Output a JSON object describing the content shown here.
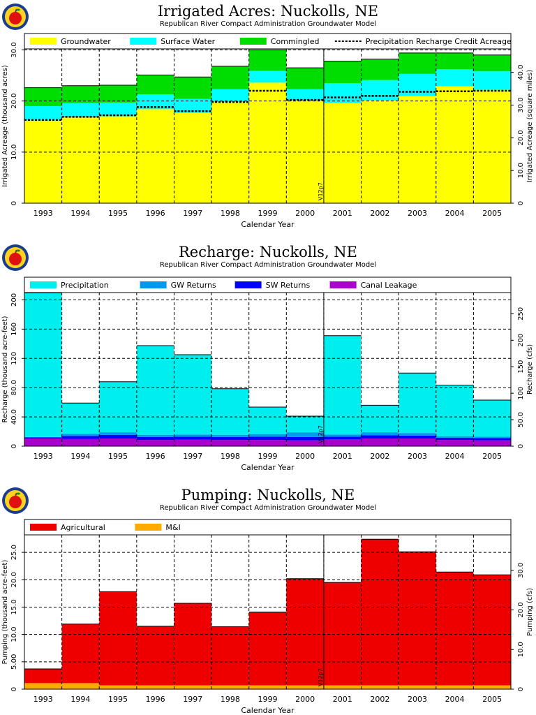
{
  "page": {
    "model": "Republican River Compact Administration Groundwater Model"
  },
  "chart_data": [
    {
      "type": "bar",
      "stacked": true,
      "title": "Irrigated Acres: Nuckolls, NE",
      "subtitle": "Republican River Compact Administration Groundwater Model",
      "xlabel": "Calendar Year",
      "ylabel": "Irrigated Acreage (thousand acres)",
      "ylabel_right": "Irrigated Acreage (square miles)",
      "ylim": [
        0,
        30.2
      ],
      "yticks": [
        0,
        10.0,
        20.0,
        30.0
      ],
      "yticks_right_labels": [
        "0",
        "10.0",
        "20.0",
        "30.0",
        "40.0"
      ],
      "yticks_right_values": [
        0,
        6.4,
        12.8,
        19.2,
        25.6
      ],
      "grid": true,
      "legend_position": "top",
      "categories": [
        "1993",
        "1994",
        "1995",
        "1996",
        "1997",
        "1998",
        "1999",
        "2000",
        "2001",
        "2002",
        "2003",
        "2004",
        "2005"
      ],
      "series": [
        {
          "name": "Groundwater",
          "color": "#ffff00",
          "values": [
            16.2,
            16.8,
            17.0,
            18.4,
            17.7,
            19.8,
            23.6,
            20.1,
            19.6,
            20.1,
            21.0,
            22.9,
            22.2
          ]
        },
        {
          "name": "Surface Water",
          "color": "#00ffff",
          "values": [
            2.8,
            2.8,
            2.7,
            2.9,
            2.7,
            2.5,
            2.3,
            2.2,
            3.9,
            4.0,
            4.3,
            3.3,
            3.6
          ]
        },
        {
          "name": "Commingled",
          "color": "#00dd00",
          "values": [
            3.6,
            3.4,
            3.4,
            3.8,
            4.3,
            4.5,
            4.1,
            4.2,
            4.3,
            4.1,
            4.1,
            3.2,
            3.2
          ]
        }
      ],
      "line": {
        "name": "Precipitation Recharge Credit Acreage",
        "values": [
          16.3,
          16.9,
          17.2,
          18.8,
          18.0,
          19.8,
          22.0,
          20.2,
          20.7,
          21.0,
          21.8,
          21.9,
          22.0
        ]
      },
      "marker": {
        "label": "V12p7",
        "after_category": "2000"
      }
    },
    {
      "type": "bar",
      "stacked": true,
      "title": "Recharge: Nuckolls, NE",
      "subtitle": "Republican River Compact Administration Groundwater Model",
      "xlabel": "Calendar Year",
      "ylabel": "Recharge (thousand acre-feet)",
      "ylabel_right": "Recharge (cfs)",
      "ylim": [
        0,
        210
      ],
      "yticks": [
        0,
        40.0,
        80.0,
        120,
        160,
        200
      ],
      "yticks_labels": [
        "0",
        "40.0",
        "80.0",
        "120",
        "160",
        "200"
      ],
      "yticks_right_labels": [
        "0",
        "50.0",
        "100",
        "150",
        "200",
        "250"
      ],
      "yticks_right_values": [
        0,
        36.2,
        72.4,
        108.6,
        144.8,
        181.0
      ],
      "grid": true,
      "legend_position": "top",
      "categories": [
        "1993",
        "1994",
        "1995",
        "1996",
        "1997",
        "1998",
        "1999",
        "2000",
        "2001",
        "2002",
        "2003",
        "2004",
        "2005"
      ],
      "series": [
        {
          "name": "Canal Leakage",
          "color": "#aa00cc",
          "values": [
            10.5,
            10.0,
            10.5,
            8.5,
            9.0,
            8.5,
            8.5,
            8.0,
            9.5,
            10.5,
            10.5,
            8.5,
            8.0
          ]
        },
        {
          "name": "SW Returns",
          "color": "#0000ff",
          "values": [
            1.5,
            4.0,
            5.0,
            4.0,
            4.0,
            4.0,
            4.5,
            4.5,
            3.5,
            4.5,
            4.0,
            3.0,
            3.0
          ]
        },
        {
          "name": "GW Returns",
          "color": "#0099ee",
          "values": [
            0.5,
            3.0,
            3.5,
            3.0,
            3.0,
            3.0,
            3.5,
            6.5,
            3.0,
            4.0,
            3.5,
            2.0,
            2.0
          ]
        },
        {
          "name": "Precipitation",
          "color": "#00eeee",
          "values": [
            197,
            42,
            69,
            122,
            109,
            63,
            37,
            22,
            135,
            37,
            82,
            70,
            50
          ]
        }
      ],
      "legend_order": [
        "Precipitation",
        "GW Returns",
        "SW Returns",
        "Canal Leakage"
      ],
      "marker": {
        "label": "V12p7",
        "after_category": "2000"
      }
    },
    {
      "type": "bar",
      "stacked": true,
      "title": "Pumping: Nuckolls, NE",
      "subtitle": "Republican River Compact Administration Groundwater Model",
      "xlabel": "Calendar Year",
      "ylabel": "Pumping (thousand acre-feet)",
      "ylabel_right": "Pumping (cfs)",
      "ylim": [
        0,
        28.2
      ],
      "yticks": [
        0,
        5.0,
        10.0,
        15.0,
        20.0,
        25.0
      ],
      "yticks_labels": [
        "0",
        "5.00",
        "10.0",
        "15.0",
        "20.0",
        "25.0"
      ],
      "yticks_right_labels": [
        "0",
        "10.0",
        "20.0",
        "30.0"
      ],
      "yticks_right_values": [
        0,
        7.24,
        14.48,
        21.72
      ],
      "grid": true,
      "legend_position": "top",
      "categories": [
        "1993",
        "1994",
        "1995",
        "1996",
        "1997",
        "1998",
        "1999",
        "2000",
        "2001",
        "2002",
        "2003",
        "2004",
        "2005"
      ],
      "series": [
        {
          "name": "M&I",
          "color": "#ffaa00",
          "values": [
            1.1,
            1.1,
            0.7,
            0.7,
            0.7,
            0.7,
            0.7,
            0.7,
            0.7,
            0.7,
            0.7,
            0.7,
            0.7
          ]
        },
        {
          "name": "Agricultural",
          "color": "#ee0000",
          "values": [
            2.6,
            10.8,
            17.1,
            10.8,
            15.0,
            10.7,
            13.4,
            19.5,
            18.8,
            26.7,
            24.4,
            20.7,
            20.2
          ]
        }
      ],
      "legend_order": [
        "Agricultural",
        "M&I"
      ],
      "marker": {
        "label": "V12p7",
        "after_category": "2000"
      }
    }
  ]
}
